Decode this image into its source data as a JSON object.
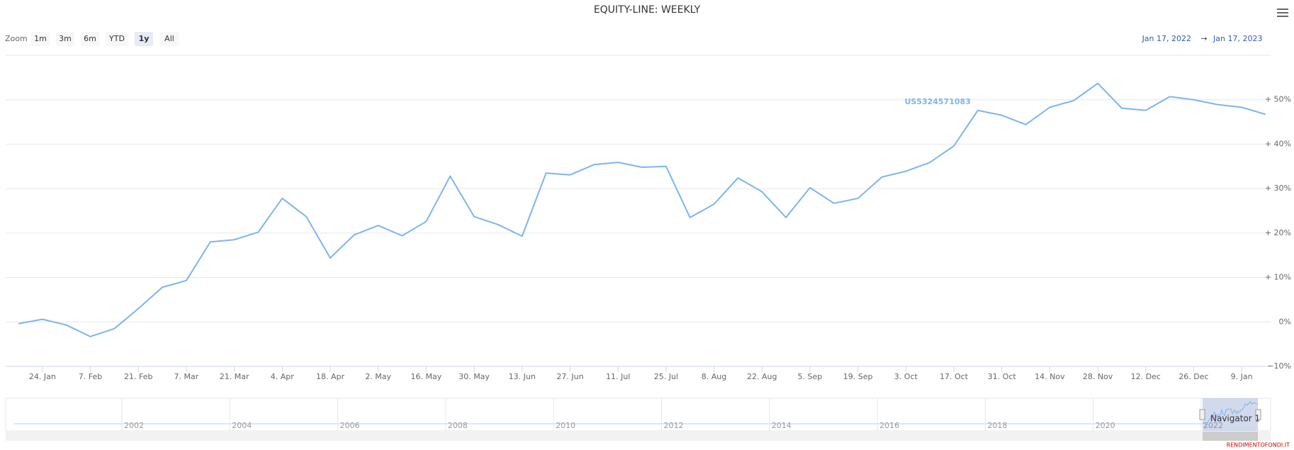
{
  "chart_data": {
    "type": "line",
    "title": "EQUITY-LINE: WEEKLY",
    "zoom": {
      "label": "Zoom",
      "buttons": [
        "1m",
        "3m",
        "6m",
        "YTD",
        "1y",
        "All"
      ],
      "selected": 4
    },
    "range": {
      "from": "Jan 17, 2022",
      "separator": "→",
      "to": "Jan 17, 2023"
    },
    "categories": [
      null,
      "24. Jan",
      null,
      "7. Feb",
      null,
      "21. Feb",
      null,
      "7. Mar",
      null,
      "21. Mar",
      null,
      "4. Apr",
      null,
      "18. Apr",
      null,
      "2. May",
      null,
      "16. May",
      null,
      "30. May",
      null,
      "13. Jun",
      null,
      "27. Jun",
      null,
      "11. Jul",
      null,
      "25. Jul",
      null,
      "8. Aug",
      null,
      "22. Aug",
      null,
      "5. Sep",
      null,
      "19. Sep",
      null,
      "3. Oct",
      null,
      "17. Oct",
      null,
      "31. Oct",
      null,
      "14. Nov",
      null,
      "28. Nov",
      null,
      "12. Dec",
      null,
      "26. Dec",
      null,
      "9. Jan",
      null
    ],
    "series": [
      {
        "name": "US5324571083",
        "color": "#7cb5ec",
        "values": [
          -0.4,
          0.6,
          -0.7,
          -3.3,
          -1.5,
          3.0,
          7.8,
          9.3,
          18.0,
          18.5,
          20.2,
          27.8,
          23.7,
          14.4,
          19.6,
          21.7,
          19.4,
          22.6,
          32.8,
          23.7,
          21.9,
          19.3,
          33.5,
          33.1,
          35.4,
          35.9,
          34.8,
          35.0,
          23.5,
          26.5,
          32.4,
          29.3,
          23.5,
          30.2,
          26.7,
          27.8,
          32.6,
          33.9,
          35.9,
          39.6,
          47.6,
          46.5,
          44.4,
          48.3,
          49.8,
          53.7,
          48.1,
          47.6,
          50.7,
          50.0,
          48.9,
          48.3,
          46.7
        ]
      }
    ],
    "ylim": [
      -10,
      60
    ],
    "yticks": [
      {
        "value": -10,
        "label": "−10%"
      },
      {
        "value": 0,
        "label": "0%"
      },
      {
        "value": 10,
        "label": "+ 10%"
      },
      {
        "value": 20,
        "label": "+ 20%"
      },
      {
        "value": 30,
        "label": "+ 30%"
      },
      {
        "value": 40,
        "label": "+ 40%"
      },
      {
        "value": 50,
        "label": "+ 50%"
      }
    ],
    "grid": true,
    "navigator": {
      "labels": [
        "2002",
        "2004",
        "2006",
        "2008",
        "2010",
        "2012",
        "2014",
        "2016",
        "2018",
        "2020",
        "2022"
      ],
      "series_name": "Navigator 1"
    },
    "credit": "RENDIMENTOFONDI.IT"
  }
}
